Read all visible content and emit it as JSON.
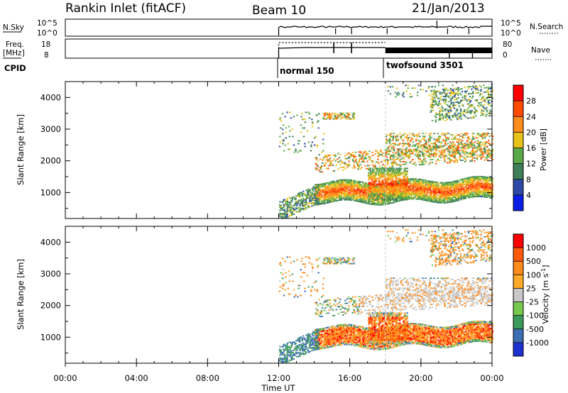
{
  "header": {
    "title": "Rankin Inlet (fitACF)",
    "beam": "Beam 10",
    "date": "21/Jan/2013"
  },
  "strips": {
    "nsky": {
      "label": "N.Sky",
      "left_ticks": [
        "10^5",
        "10^0"
      ],
      "right_ticks": [
        "10^5",
        "10^0"
      ],
      "right_label": "N.Search"
    },
    "freq": {
      "label_top": "Freq.",
      "label_bottom": "[MHz]",
      "left_ticks": [
        "18",
        "8"
      ],
      "right_ticks": [
        "80",
        "0"
      ],
      "right_label": "Nave"
    },
    "cpid": {
      "label": "CPID",
      "modes": [
        {
          "name": "normal 150",
          "start_hour": 12
        },
        {
          "name": "twofsound 3501",
          "start_hour": 18
        }
      ]
    }
  },
  "x_axis": {
    "label": "Time UT",
    "ticks": [
      "00:00",
      "04:00",
      "08:00",
      "12:00",
      "16:00",
      "20:00",
      "00:00"
    ]
  },
  "colors": {
    "power": [
      "#0a1ee6",
      "#2e4aa6",
      "#3f7f57",
      "#5aaa4a",
      "#e6c21a",
      "#ff8c1a",
      "#ff4a00",
      "#ff0000"
    ],
    "velocity": [
      "#ff0000",
      "#ff5a0a",
      "#ff8c1a",
      "#ffaa28",
      "#c8c8c8",
      "#78c850",
      "#3c9a5a",
      "#3c6eb4",
      "#1e32d2"
    ]
  },
  "chart_data": [
    {
      "type": "heatmap",
      "panel": "power",
      "ylabel": "Slant Range [km]",
      "xlabel": "Time UT",
      "x_range_hours": [
        0,
        24
      ],
      "y_range_km": [
        180,
        4500
      ],
      "y_ticks": [
        1000,
        2000,
        3000,
        4000
      ],
      "colorbar": {
        "label": "Power [dB]",
        "ticks": [
          "4",
          "8",
          "12",
          "16",
          "20",
          "24",
          "28"
        ],
        "range": [
          0,
          32
        ]
      }
    },
    {
      "type": "heatmap",
      "panel": "velocity",
      "ylabel": "Slant Range [km]",
      "xlabel": "Time UT",
      "x_range_hours": [
        0,
        24
      ],
      "y_range_km": [
        180,
        4500
      ],
      "y_ticks": [
        1000,
        2000,
        3000,
        4000
      ],
      "colorbar": {
        "label": "Velocity [m s^-1]",
        "ticks": [
          "1000",
          "500",
          "100",
          "25",
          "-25",
          "-100",
          "-500",
          "-1000"
        ]
      }
    }
  ]
}
